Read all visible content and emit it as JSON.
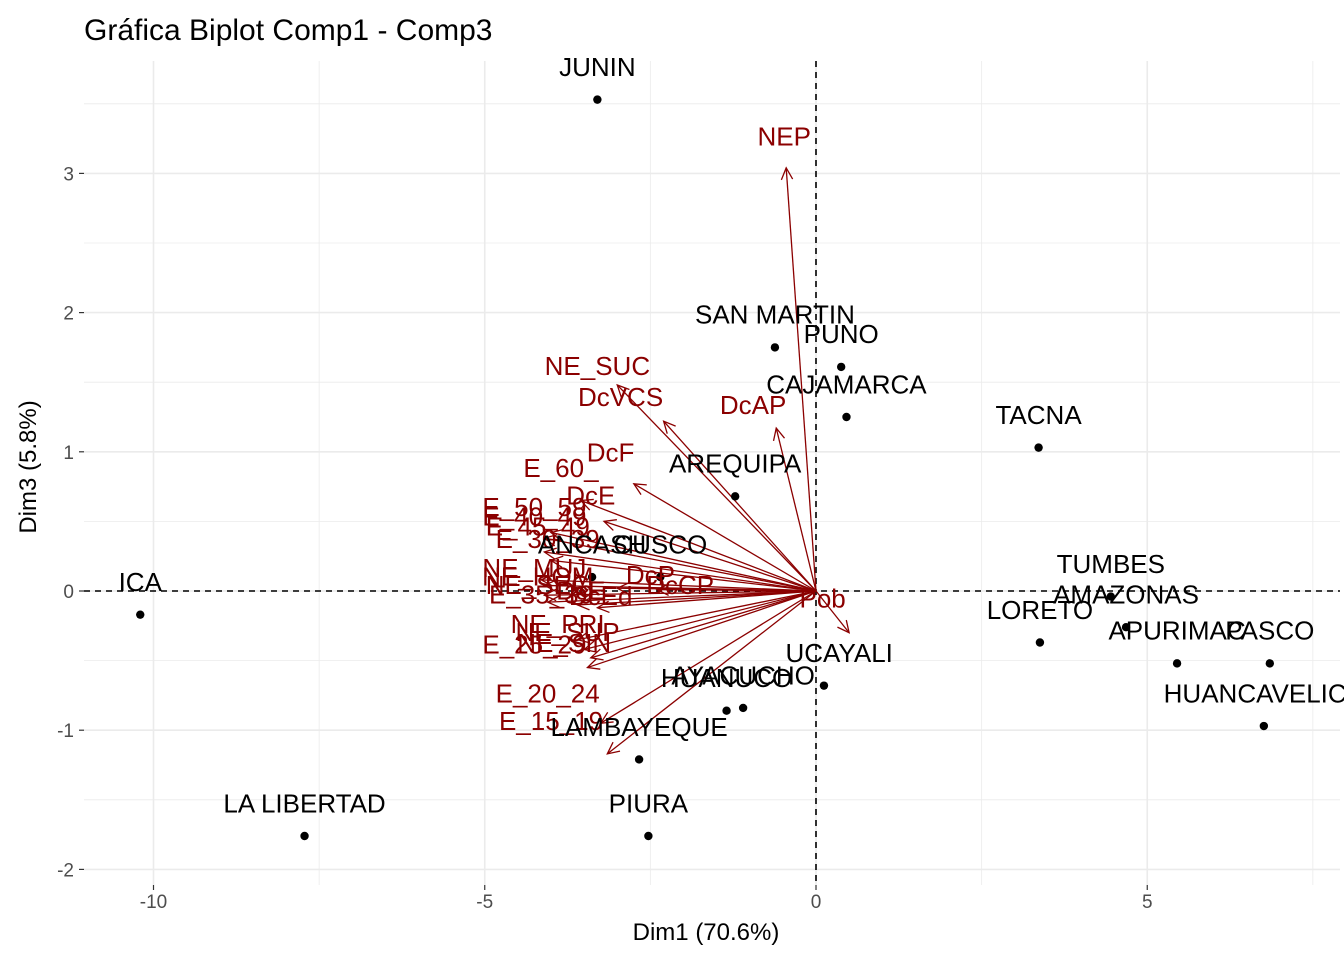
{
  "chart_data": {
    "type": "scatter",
    "subtype": "pca-biplot",
    "title": "Gráfica Biplot Comp1 - Comp3",
    "xlabel": "Dim1 (70.6%)",
    "ylabel": "Dim3 (5.8%)",
    "xlim": [
      -11.1,
      7.75
    ],
    "ylim": [
      -2.2,
      3.8
    ],
    "x_ticks": [
      -10,
      -5,
      0,
      5
    ],
    "x_tick_labels": [
      "-10",
      "-5",
      "0",
      "5"
    ],
    "y_ticks": [
      -2,
      -1,
      0,
      1,
      2,
      3
    ],
    "y_tick_labels": [
      "-2",
      "-1",
      "0",
      "1",
      "2",
      "3"
    ],
    "grid": true,
    "reference_lines": {
      "x": 0,
      "y": 0,
      "style": "dashed"
    },
    "colors": {
      "individuals": "#000000",
      "variables": "#8b0000",
      "grid": "#ebebeb",
      "tick_text": "#4d4d4d"
    },
    "individuals": [
      {
        "label": "JUNIN",
        "x": -3.3,
        "y": 3.53
      },
      {
        "label": "SAN MARTIN",
        "x": -0.62,
        "y": 1.75
      },
      {
        "label": "PUNO",
        "x": 0.38,
        "y": 1.61
      },
      {
        "label": "CAJAMARCA",
        "x": 0.46,
        "y": 1.25
      },
      {
        "label": "TACNA",
        "x": 3.36,
        "y": 1.03
      },
      {
        "label": "AREQUIPA",
        "x": -1.22,
        "y": 0.68
      },
      {
        "label": "ANCASH",
        "x": -3.38,
        "y": 0.1
      },
      {
        "label": "CUSCO",
        "x": -2.35,
        "y": 0.1
      },
      {
        "label": "ICA",
        "x": -10.2,
        "y": -0.17
      },
      {
        "label": "TUMBES",
        "x": 4.45,
        "y": -0.04
      },
      {
        "label": "AMAZONAS",
        "x": 4.68,
        "y": -0.26
      },
      {
        "label": "LORETO",
        "x": 3.38,
        "y": -0.37
      },
      {
        "label": "APURIMAC",
        "x": 5.45,
        "y": -0.52
      },
      {
        "label": "PASCO",
        "x": 6.85,
        "y": -0.52
      },
      {
        "label": "HUANCAVELICA",
        "x": 6.76,
        "y": -0.97
      },
      {
        "label": "UCAYALI",
        "x": 0.12,
        "y": -0.68
      },
      {
        "label": "AYACUCHO",
        "x": -1.1,
        "y": -0.84
      },
      {
        "label": "HUANUCO",
        "x": -1.35,
        "y": -0.86
      },
      {
        "label": "LAMBAYEQUE",
        "x": -2.67,
        "y": -1.21
      },
      {
        "label": "LA LIBERTAD",
        "x": -7.72,
        "y": -1.76
      },
      {
        "label": "PIURA",
        "x": -2.53,
        "y": -1.76
      }
    ],
    "variables": [
      {
        "label": "NEP",
        "x": -0.45,
        "y": 3.04
      },
      {
        "label": "NE_SUC",
        "x": -3.0,
        "y": 1.48
      },
      {
        "label": "DcVCS",
        "x": -2.3,
        "y": 1.22
      },
      {
        "label": "DcAP",
        "x": -0.6,
        "y": 1.17
      },
      {
        "label": "DcF",
        "x": -2.75,
        "y": 0.77
      },
      {
        "label": "E_60_",
        "x": -3.55,
        "y": 0.65
      },
      {
        "label": "DcE",
        "x": -3.2,
        "y": 0.5
      },
      {
        "label": "E_50_59",
        "x": -4.0,
        "y": 0.42
      },
      {
        "label": "E_40_49",
        "x": -4.1,
        "y": 0.38
      },
      {
        "label": "E_45_49",
        "x": -4.1,
        "y": 0.28
      },
      {
        "label": "E_30_39",
        "x": -4.0,
        "y": 0.22
      },
      {
        "label": "NE_MUJ",
        "x": -4.15,
        "y": 0.08
      },
      {
        "label": "NE_HOM",
        "x": -4.1,
        "y": 0.04
      },
      {
        "label": "DcP",
        "x": -3.0,
        "y": 0.02
      },
      {
        "label": "DcCP",
        "x": -2.4,
        "y": 0.01
      },
      {
        "label": "NE_SEC",
        "x": -4.1,
        "y": -0.03
      },
      {
        "label": "E_35_39",
        "x": -4.05,
        "y": -0.08
      },
      {
        "label": "DcE2",
        "x": -3.6,
        "y": -0.1
      },
      {
        "label": "DcEd",
        "x": -3.3,
        "y": -0.12
      },
      {
        "label": "NE_PRI",
        "x": -3.6,
        "y": -0.35
      },
      {
        "label": "NE_SUP",
        "x": -3.5,
        "y": -0.42
      },
      {
        "label": "NE_SIN",
        "x": -3.4,
        "y": -0.48
      },
      {
        "label": "E_25_29",
        "x": -3.45,
        "y": -0.55
      },
      {
        "label": "E_20_24",
        "x": -3.25,
        "y": -0.95
      },
      {
        "label": "E_15_19",
        "x": -3.15,
        "y": -1.17
      },
      {
        "label": "Pob",
        "x": 0.5,
        "y": -0.3
      }
    ],
    "variable_text": [
      {
        "text": "NEP",
        "x": -0.48,
        "y": 3.2
      },
      {
        "text": "NE_SUC",
        "x": -3.3,
        "y": 1.55
      },
      {
        "text": "DcVCS",
        "x": -2.95,
        "y": 1.33
      },
      {
        "text": "DcAP",
        "x": -0.95,
        "y": 1.27
      },
      {
        "text": "DcF",
        "x": -3.1,
        "y": 0.93
      },
      {
        "text": "E_60_",
        "x": -3.85,
        "y": 0.82
      },
      {
        "text": "DcE",
        "x": -3.4,
        "y": 0.62
      },
      {
        "text": "E_50_59",
        "x": -4.25,
        "y": 0.54
      },
      {
        "text": "E_40_49",
        "x": -4.25,
        "y": 0.47
      },
      {
        "text": "E_45_49",
        "x": -4.2,
        "y": 0.4
      },
      {
        "text": "E_30_39",
        "x": -4.05,
        "y": 0.31
      },
      {
        "text": "NE_MUJ",
        "x": -4.25,
        "y": 0.1
      },
      {
        "text": "NE_HOM",
        "x": -4.2,
        "y": 0.04
      },
      {
        "text": "DcP",
        "x": -2.5,
        "y": 0.05
      },
      {
        "text": "DcCP",
        "x": -2.05,
        "y": -0.02
      },
      {
        "text": "NE_SEC",
        "x": -4.2,
        "y": -0.02
      },
      {
        "text": "E_35_39",
        "x": -4.15,
        "y": -0.09
      },
      {
        "text": "DcE",
        "x": -3.55,
        "y": -0.06
      },
      {
        "text": "DcEd",
        "x": -3.25,
        "y": -0.1
      },
      {
        "text": "NE_PRI",
        "x": -3.9,
        "y": -0.3
      },
      {
        "text": "NE_SUP",
        "x": -3.75,
        "y": -0.36
      },
      {
        "text": "NE_SIN",
        "x": -3.8,
        "y": -0.44
      },
      {
        "text": "E_25_29",
        "x": -4.25,
        "y": -0.45
      },
      {
        "text": "E_20_24",
        "x": -4.05,
        "y": -0.8
      },
      {
        "text": "E_15_19",
        "x": -4.0,
        "y": -1.0
      },
      {
        "text": "Pob",
        "x": 0.1,
        "y": -0.12
      }
    ],
    "individual_text": [
      {
        "text": "JUNIN",
        "x": -3.3,
        "y": 3.7
      },
      {
        "text": "SAN MARTIN",
        "x": -0.62,
        "y": 1.92
      },
      {
        "text": "PUNO",
        "x": 0.38,
        "y": 1.78
      },
      {
        "text": "CAJAMARCA",
        "x": 0.46,
        "y": 1.42
      },
      {
        "text": "TACNA",
        "x": 3.36,
        "y": 1.2
      },
      {
        "text": "AREQUIPA",
        "x": -1.22,
        "y": 0.85
      },
      {
        "text": "ANCASH",
        "x": -3.38,
        "y": 0.27
      },
      {
        "text": "CUSCO",
        "x": -2.35,
        "y": 0.27
      },
      {
        "text": "ICA",
        "x": -10.2,
        "y": 0.0
      },
      {
        "text": "TUMBES",
        "x": 4.45,
        "y": 0.13
      },
      {
        "text": "AMAZONAS",
        "x": 4.68,
        "y": -0.09
      },
      {
        "text": "LORETO",
        "x": 3.38,
        "y": -0.2
      },
      {
        "text": "APURIMAC",
        "x": 5.45,
        "y": -0.35
      },
      {
        "text": "PASCO",
        "x": 6.85,
        "y": -0.35
      },
      {
        "text": "HUANCAVELICA",
        "x": 6.76,
        "y": -0.8
      },
      {
        "text": "UCAYALI",
        "x": 0.35,
        "y": -0.51
      },
      {
        "text": "AYACUCHO",
        "x": -1.1,
        "y": -0.67
      },
      {
        "text": "HUANUCO",
        "x": -1.35,
        "y": -0.69
      },
      {
        "text": "LAMBAYEQUE",
        "x": -2.67,
        "y": -1.04
      },
      {
        "text": "LA LIBERTAD",
        "x": -7.72,
        "y": -1.59
      },
      {
        "text": "PIURA",
        "x": -2.53,
        "y": -1.59
      }
    ]
  }
}
